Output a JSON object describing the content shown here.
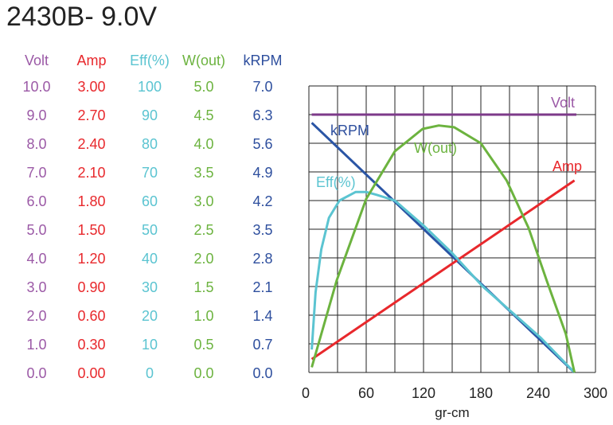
{
  "chart_data": {
    "type": "line",
    "title": "2430B- 9.0V",
    "xlabel": "gr-cm",
    "xlim": [
      0,
      300
    ],
    "xticks": [
      0,
      60,
      120,
      180,
      240,
      300
    ],
    "grid": true,
    "y_axes": [
      {
        "name": "Volt",
        "color": "#9b59a6",
        "ticks": [
          "0.0",
          "1.0",
          "2.0",
          "3.0",
          "4.0",
          "5.0",
          "6.0",
          "7.0",
          "8.0",
          "9.0",
          "10.0"
        ],
        "max": 10
      },
      {
        "name": "Amp",
        "color": "#e8282c",
        "ticks": [
          "0.00",
          "0.30",
          "0.60",
          "0.90",
          "1.20",
          "1.50",
          "1.80",
          "2.10",
          "2.40",
          "2.70",
          "3.00"
        ],
        "max": 3
      },
      {
        "name": "Eff(%)",
        "color": "#5bc4d1",
        "ticks": [
          "0",
          "10",
          "20",
          "30",
          "40",
          "50",
          "60",
          "70",
          "80",
          "90",
          "100"
        ],
        "max": 100
      },
      {
        "name": "W(out)",
        "color": "#6cb33f",
        "ticks": [
          "0.0",
          "0.5",
          "1.0",
          "1.5",
          "2.0",
          "2.5",
          "3.0",
          "3.5",
          "4.0",
          "4.5",
          "5.0"
        ],
        "max": 5
      },
      {
        "name": "kRPM",
        "color": "#2e4f9e",
        "ticks": [
          "0.0",
          "0.7",
          "1.4",
          "2.1",
          "2.8",
          "3.5",
          "4.2",
          "4.9",
          "5.6",
          "6.3",
          "7.0"
        ],
        "max": 7
      }
    ],
    "series": [
      {
        "name": "Volt",
        "axis": 0,
        "color": "#7d3a8a",
        "x": [
          3,
          280
        ],
        "y": [
          9.0,
          9.0
        ]
      },
      {
        "name": "kRPM",
        "axis": 4,
        "color": "#2a55a5",
        "x": [
          3,
          278
        ],
        "y": [
          6.1,
          0
        ]
      },
      {
        "name": "Amp",
        "axis": 1,
        "color": "#e8282c",
        "x": [
          3,
          278
        ],
        "y": [
          0.14,
          2.01
        ]
      },
      {
        "name": "Eff(%)",
        "axis": 2,
        "color": "#5bc4d1",
        "x": [
          3,
          7,
          13,
          21,
          32,
          49,
          60,
          71,
          90,
          121,
          149,
          182,
          216,
          243,
          278
        ],
        "y": [
          8,
          28,
          43,
          54,
          60,
          63,
          63,
          62,
          60,
          51,
          42,
          30,
          20,
          12,
          0
        ]
      },
      {
        "name": "W(out)",
        "axis": 3,
        "color": "#6cb33f",
        "x": [
          3,
          29,
          60,
          90,
          119,
          136,
          152,
          180,
          207,
          230,
          249,
          269,
          278
        ],
        "y": [
          0.09,
          1.6,
          3.03,
          3.86,
          4.25,
          4.31,
          4.28,
          4.0,
          3.35,
          2.52,
          1.6,
          0.67,
          0
        ]
      }
    ]
  }
}
